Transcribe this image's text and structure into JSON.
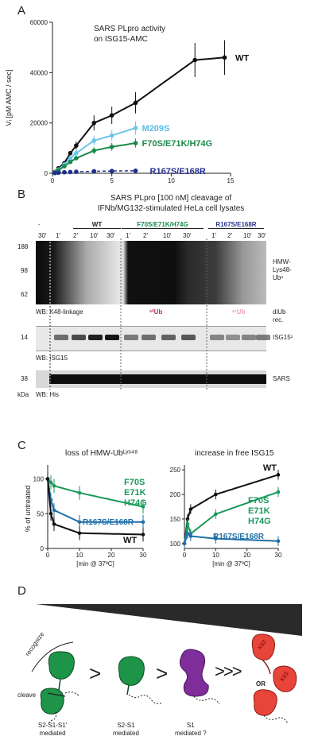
{
  "panels": {
    "A": "A",
    "B": "B",
    "C": "C",
    "D": "D"
  },
  "panelA": {
    "title_line1": "SARS PLpro activity",
    "title_line2": "on ISG15-AMC",
    "ylabel": "Vᵢ [pM AMC / sec]",
    "xlabel": "ISG15-AMC [µM]",
    "yticks": [
      "0",
      "20000",
      "40000",
      "60000"
    ],
    "xticks": [
      "0",
      "5",
      "10",
      "15"
    ],
    "series_labels": [
      "WT",
      "M209S",
      "F70S/E71K/H74G",
      "R167S/E168R"
    ]
  },
  "chart_data": [
    {
      "type": "scatter",
      "title": "SARS PLpro activity on ISG15-AMC",
      "xlabel": "ISG15-AMC [µM]",
      "ylabel": "Vᵢ [pM AMC / sec]",
      "xlim": [
        0,
        15
      ],
      "ylim": [
        0,
        60000
      ],
      "series": [
        {
          "name": "WT",
          "color": "#111111",
          "x": [
            0.2,
            0.5,
            1,
            1.5,
            2,
            3.5,
            5,
            7,
            12,
            14.5
          ],
          "y": [
            500,
            2000,
            4000,
            8000,
            11000,
            20000,
            23000,
            28000,
            45000,
            46000
          ]
        },
        {
          "name": "M209S",
          "color": "#6ec6e9",
          "x": [
            0.2,
            0.5,
            1,
            1.5,
            2,
            3.5,
            5,
            7
          ],
          "y": [
            400,
            1500,
            3500,
            6000,
            8000,
            13000,
            15000,
            18000
          ]
        },
        {
          "name": "F70S/E71K/H74G",
          "color": "#1a8a4a",
          "x": [
            0.2,
            0.5,
            1,
            1.5,
            2,
            3.5,
            5,
            7
          ],
          "y": [
            300,
            1200,
            2800,
            4500,
            6000,
            9000,
            10500,
            12000
          ]
        },
        {
          "name": "R167S/E168R",
          "color": "#1f2f8f",
          "x": [
            0.2,
            0.5,
            1,
            1.5,
            2,
            3.5,
            5,
            7
          ],
          "y": [
            100,
            200,
            400,
            500,
            600,
            800,
            900,
            1000
          ]
        }
      ]
    },
    {
      "type": "line",
      "title": "loss of HMW-Ubᴸʸˢ⁴⁸",
      "xlabel": "[min @ 37ºC]",
      "ylabel": "% of untreated",
      "xlim": [
        0,
        30
      ],
      "ylim": [
        0,
        120
      ],
      "series": [
        {
          "name": "F70S E71K H74G",
          "color": "#1a9a5a",
          "x": [
            0,
            1,
            2,
            10,
            30
          ],
          "y": [
            100,
            95,
            90,
            80,
            60
          ]
        },
        {
          "name": "R167S/E168R",
          "color": "#1f6fa8",
          "x": [
            0,
            1,
            2,
            10,
            30
          ],
          "y": [
            100,
            70,
            55,
            38,
            38
          ]
        },
        {
          "name": "WT",
          "color": "#111111",
          "x": [
            0,
            1,
            2,
            10,
            30
          ],
          "y": [
            100,
            50,
            35,
            22,
            20
          ]
        }
      ]
    },
    {
      "type": "line",
      "title": "increase in free ISG15",
      "xlabel": "[min @ 37ºC]",
      "ylim": [
        0,
        250
      ],
      "xlim": [
        0,
        30
      ],
      "series": [
        {
          "name": "WT",
          "color": "#111111",
          "x": [
            0,
            1,
            2,
            10,
            30
          ],
          "y": [
            100,
            150,
            170,
            200,
            240
          ]
        },
        {
          "name": "F70S E71K H74G",
          "color": "#1a9a5a",
          "x": [
            0,
            1,
            2,
            10,
            30
          ],
          "y": [
            100,
            140,
            120,
            160,
            205
          ]
        },
        {
          "name": "R167S/E168R",
          "color": "#1f6fa8",
          "x": [
            0,
            1,
            2,
            10,
            30
          ],
          "y": [
            100,
            120,
            115,
            110,
            105
          ]
        }
      ]
    }
  ],
  "panelB": {
    "title_line1": "SARS PLpro [100 nM] cleavage of",
    "title_line2": "IFNb/MG132-stimulated HeLa cell lysates",
    "groups": [
      "WT",
      "F70S/E71K/H74G",
      "R167S/E168R"
    ],
    "dash": "-",
    "lanes": [
      "30′",
      "1′",
      "2′",
      "10′",
      "30′",
      "1′",
      "2′",
      "10′",
      "30′",
      "1′",
      "2′",
      "10′",
      "30′"
    ],
    "mw_top": [
      "188",
      "98",
      "62"
    ],
    "mw_mid": "14",
    "mw_bot": "38",
    "right_labels": [
      "HMW-",
      "Lys48-",
      "Ubⁿ"
    ],
    "wb1": "WB:  K48-linkage",
    "s2ub": "ˢ²Ub",
    "s1ub": "ˢ¹Ub",
    "diub": "diUb",
    "rec": "rec.",
    "isg_label": "ISG15¹",
    "wb2": "WB:  ISG15",
    "sars": "SARS",
    "kda": "kDa",
    "wb3": "WB:  His"
  },
  "panelC": {
    "left_title": "loss of HMW-Ubᴸʸˢ⁴⁸",
    "right_title": "increase in free ISG15",
    "ylabel": "% of untreated",
    "xlabel": "[min @ 37ºC]",
    "left_yticks": [
      "0",
      "50",
      "100"
    ],
    "right_yticks": [
      "100",
      "150",
      "200",
      "250"
    ],
    "xticks": [
      "0",
      "10",
      "20",
      "30"
    ],
    "labels": {
      "f70_1": "F70S",
      "f70_2": "E71K",
      "f70_3": "H74G",
      "r167": "R167S/E168R",
      "wt": "WT"
    }
  },
  "panelD": {
    "recognize": "recognize",
    "cleave": "cleave",
    "gt1": ">",
    "gt2": ">",
    "gt3": ">>>",
    "or": "OR",
    "k63a": "K63",
    "k63b": "K63",
    "cap1_1": "S2-S1-S1′",
    "cap1_2": "mediated",
    "cap2_1": "S2-S1",
    "cap2_2": "mediated",
    "cap3_1": "S1",
    "cap3_2": "mediated ?"
  }
}
